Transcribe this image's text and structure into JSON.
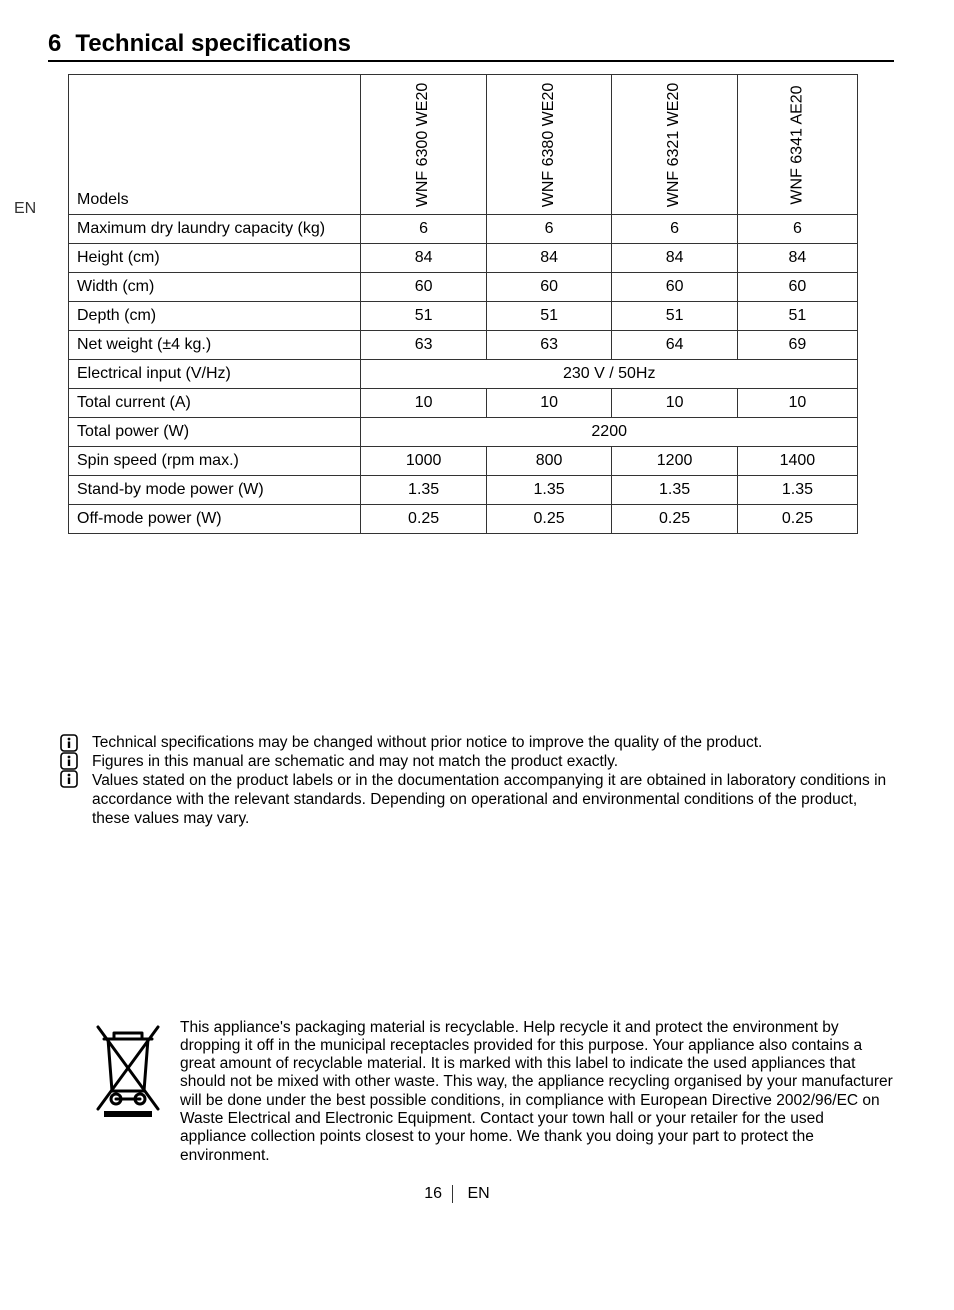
{
  "heading": {
    "number": "6",
    "title": "Technical specifications"
  },
  "margin_lang": "EN",
  "table": {
    "models_label": "Models",
    "model_headers": [
      "WNF 6300 WE20",
      "WNF 6380 WE20",
      "WNF 6321 WE20",
      "WNF 6341 AE20"
    ],
    "rows": [
      {
        "label": "Maximum dry laundry capacity (kg)",
        "values": [
          "6",
          "6",
          "6",
          "6"
        ]
      },
      {
        "label": "Height (cm)",
        "values": [
          "84",
          "84",
          "84",
          "84"
        ]
      },
      {
        "label": "Width (cm)",
        "values": [
          "60",
          "60",
          "60",
          "60"
        ]
      },
      {
        "label": "Depth (cm)",
        "values": [
          "51",
          "51",
          "51",
          "51"
        ]
      },
      {
        "label": "Net weight (±4 kg.)",
        "values": [
          "63",
          "63",
          "64",
          "69"
        ]
      },
      {
        "label": "Electrical input (V/Hz)",
        "span": "230 V / 50Hz"
      },
      {
        "label": "Total current (A)",
        "values": [
          "10",
          "10",
          "10",
          "10"
        ]
      },
      {
        "label": "Total power (W)",
        "span": "2200"
      },
      {
        "label": "Spin speed (rpm max.)",
        "values": [
          "1000",
          "800",
          "1200",
          "1400"
        ]
      },
      {
        "label": "Stand-by mode power (W)",
        "values": [
          "1.35",
          "1.35",
          "1.35",
          "1.35"
        ]
      },
      {
        "label": "Off-mode power (W)",
        "values": [
          "0.25",
          "0.25",
          "0.25",
          "0.25"
        ]
      }
    ]
  },
  "notes": [
    "Technical specifications may be changed without prior notice to improve the quality of the product.",
    "Figures in this manual are schematic and may not match the product exactly.",
    "Values stated on the product labels or in the documentation accompanying it are obtained in laboratory conditions in accordance with the relevant standards. Depending on operational and environmental conditions of the product, these values may vary."
  ],
  "recycle_text": "This appliance's packaging material is recyclable. Help recycle it and protect the environment by dropping it off in the municipal receptacles provided for this purpose. Your appliance also contains a great amount of recyclable material. It is marked with this label to indicate the used appliances that should not be mixed with other waste. This way, the appliance recycling organised by your manufacturer will be done under the best possible conditions, in compliance with European Directive 2002/96/EC on Waste Electrical and Electronic Equipment. Contact your town hall or your retailer for the used appliance collection points closest to your home.  We thank you doing your part to protect the environment.",
  "footer": {
    "page_number": "16",
    "lang": "EN"
  },
  "colors": {
    "text": "#000000",
    "border": "#333333",
    "background": "#ffffff"
  }
}
